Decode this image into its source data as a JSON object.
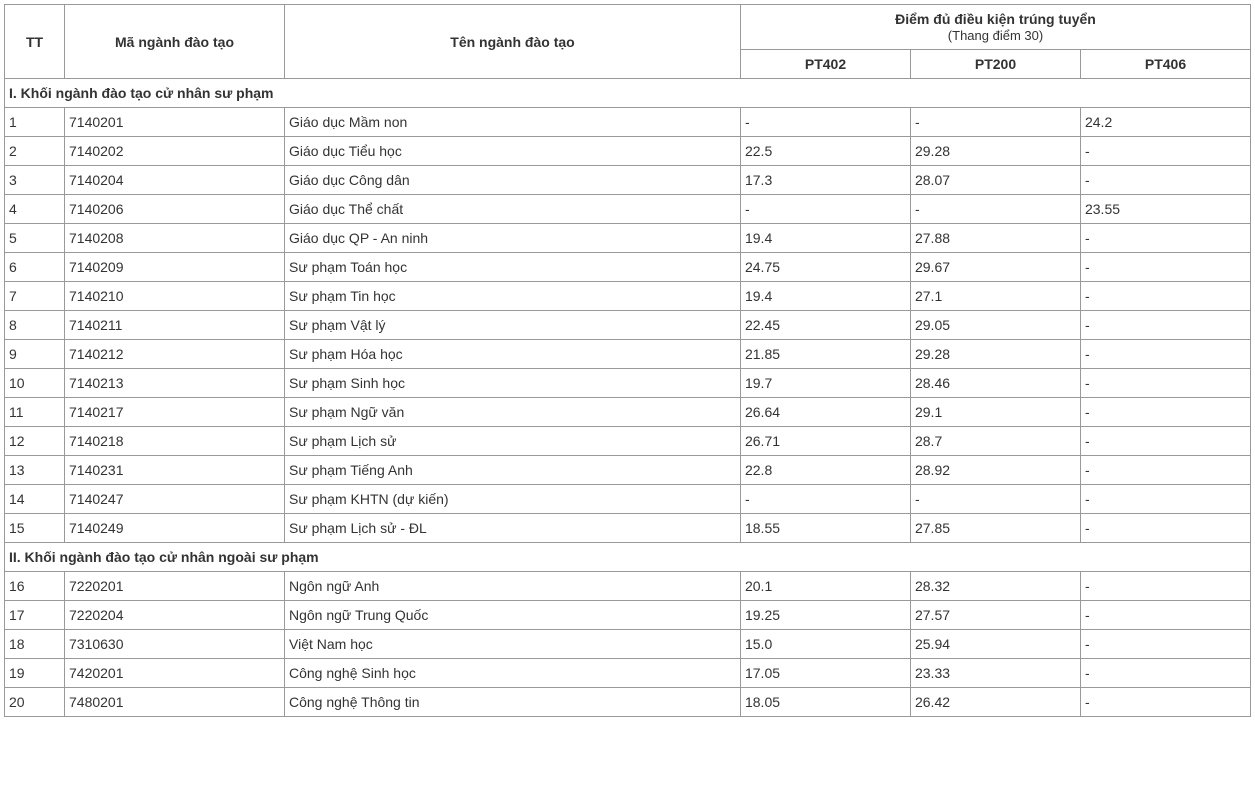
{
  "headers": {
    "tt": "TT",
    "code": "Mã ngành đào tạo",
    "name": "Tên ngành đào tạo",
    "score_group": "Điểm đủ điều kiện trúng tuyển",
    "score_scale": "(Thang điểm 30)",
    "pt402": "PT402",
    "pt200": "PT200",
    "pt406": "PT406"
  },
  "section1": {
    "title": "I. Khối ngành đào tạo cử nhân sư phạm",
    "rows": [
      {
        "tt": "1",
        "code": "7140201",
        "name": "Giáo dục Mầm non",
        "pt402": "-",
        "pt200": "-",
        "pt406": "24.2"
      },
      {
        "tt": "2",
        "code": "7140202",
        "name": "Giáo dục Tiểu học",
        "pt402": "22.5",
        "pt200": "29.28",
        "pt406": "-"
      },
      {
        "tt": "3",
        "code": "7140204",
        "name": "Giáo dục Công dân",
        "pt402": "17.3",
        "pt200": "28.07",
        "pt406": "-"
      },
      {
        "tt": "4",
        "code": "7140206",
        "name": "Giáo dục Thể chất",
        "pt402": "-",
        "pt200": "-",
        "pt406": "23.55"
      },
      {
        "tt": "5",
        "code": "7140208",
        "name": "Giáo dục QP - An ninh",
        "pt402": "19.4",
        "pt200": "27.88",
        "pt406": "-"
      },
      {
        "tt": "6",
        "code": "7140209",
        "name": "Sư phạm Toán học",
        "pt402": "24.75",
        "pt200": "29.67",
        "pt406": "-"
      },
      {
        "tt": "7",
        "code": "7140210",
        "name": "Sư phạm Tin học",
        "pt402": "19.4",
        "pt200": "27.1",
        "pt406": "-"
      },
      {
        "tt": "8",
        "code": "7140211",
        "name": "Sư phạm Vật lý",
        "pt402": "22.45",
        "pt200": "29.05",
        "pt406": "-"
      },
      {
        "tt": "9",
        "code": "7140212",
        "name": "Sư phạm Hóa học",
        "pt402": "21.85",
        "pt200": "29.28",
        "pt406": "-"
      },
      {
        "tt": "10",
        "code": "7140213",
        "name": "Sư phạm Sinh học",
        "pt402": "19.7",
        "pt200": "28.46",
        "pt406": "-"
      },
      {
        "tt": "11",
        "code": "7140217",
        "name": "Sư phạm Ngữ văn",
        "pt402": "26.64",
        "pt200": "29.1",
        "pt406": "-"
      },
      {
        "tt": "12",
        "code": "7140218",
        "name": "Sư phạm Lịch sử",
        "pt402": "26.71",
        "pt200": "28.7",
        "pt406": "-"
      },
      {
        "tt": "13",
        "code": "7140231",
        "name": "Sư phạm Tiếng Anh",
        "pt402": "22.8",
        "pt200": "28.92",
        "pt406": "-"
      },
      {
        "tt": "14",
        "code": "7140247",
        "name": "Sư phạm KHTN (dự kiến)",
        "pt402": "-",
        "pt200": "-",
        "pt406": "-"
      },
      {
        "tt": "15",
        "code": "7140249",
        "name": "Sư phạm Lịch sử - ĐL",
        "pt402": "18.55",
        "pt200": "27.85",
        "pt406": "-"
      }
    ]
  },
  "section2": {
    "title": "II. Khối ngành đào tạo cử nhân ngoài sư phạm",
    "rows": [
      {
        "tt": "16",
        "code": "7220201",
        "name": "Ngôn ngữ Anh",
        "pt402": "20.1",
        "pt200": "28.32",
        "pt406": "-"
      },
      {
        "tt": "17",
        "code": "7220204",
        "name": "Ngôn ngữ Trung Quốc",
        "pt402": "19.25",
        "pt200": "27.57",
        "pt406": "-"
      },
      {
        "tt": "18",
        "code": "7310630",
        "name": "Việt Nam học",
        "pt402": "15.0",
        "pt200": "25.94",
        "pt406": "-"
      },
      {
        "tt": "19",
        "code": "7420201",
        "name": "Công nghệ Sinh học",
        "pt402": "17.05",
        "pt200": "23.33",
        "pt406": "-"
      },
      {
        "tt": "20",
        "code": "7480201",
        "name": "Công nghệ Thông tin",
        "pt402": "18.05",
        "pt200": "26.42",
        "pt406": "-"
      }
    ]
  },
  "styling": {
    "border_color": "#999999",
    "text_color": "#333333",
    "background_color": "#ffffff",
    "font_size": 14,
    "header_font_weight": "bold",
    "col_widths": {
      "tt": 60,
      "code": 220,
      "pt": 170
    }
  }
}
